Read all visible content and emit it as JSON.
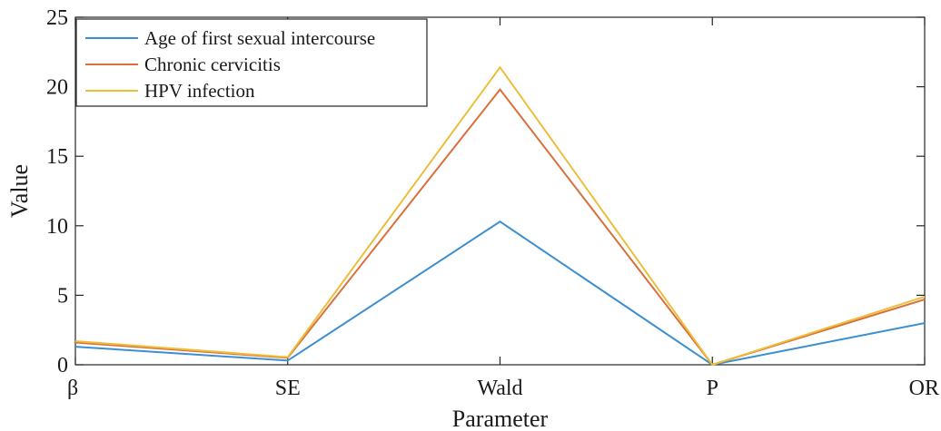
{
  "chart_data": {
    "type": "line",
    "xlabel": "Parameter",
    "ylabel": "Value",
    "categories": [
      "β",
      "SE",
      "Wald",
      "P",
      "OR"
    ],
    "ylim": [
      0,
      25
    ],
    "yticks": [
      0,
      5,
      10,
      15,
      20,
      25
    ],
    "grid": false,
    "legend_position": "top-left",
    "series": [
      {
        "name": "Age of first sexual intercourse",
        "color": "#3b8fd0",
        "values": [
          1.3,
          0.3,
          10.3,
          0.0,
          3.0
        ]
      },
      {
        "name": "Chronic cervicitis",
        "color": "#d9703c",
        "values": [
          1.6,
          0.5,
          19.8,
          0.0,
          4.7
        ]
      },
      {
        "name": "HPV infection",
        "color": "#ecbe3a",
        "values": [
          1.7,
          0.55,
          21.4,
          0.0,
          4.9
        ]
      }
    ]
  }
}
